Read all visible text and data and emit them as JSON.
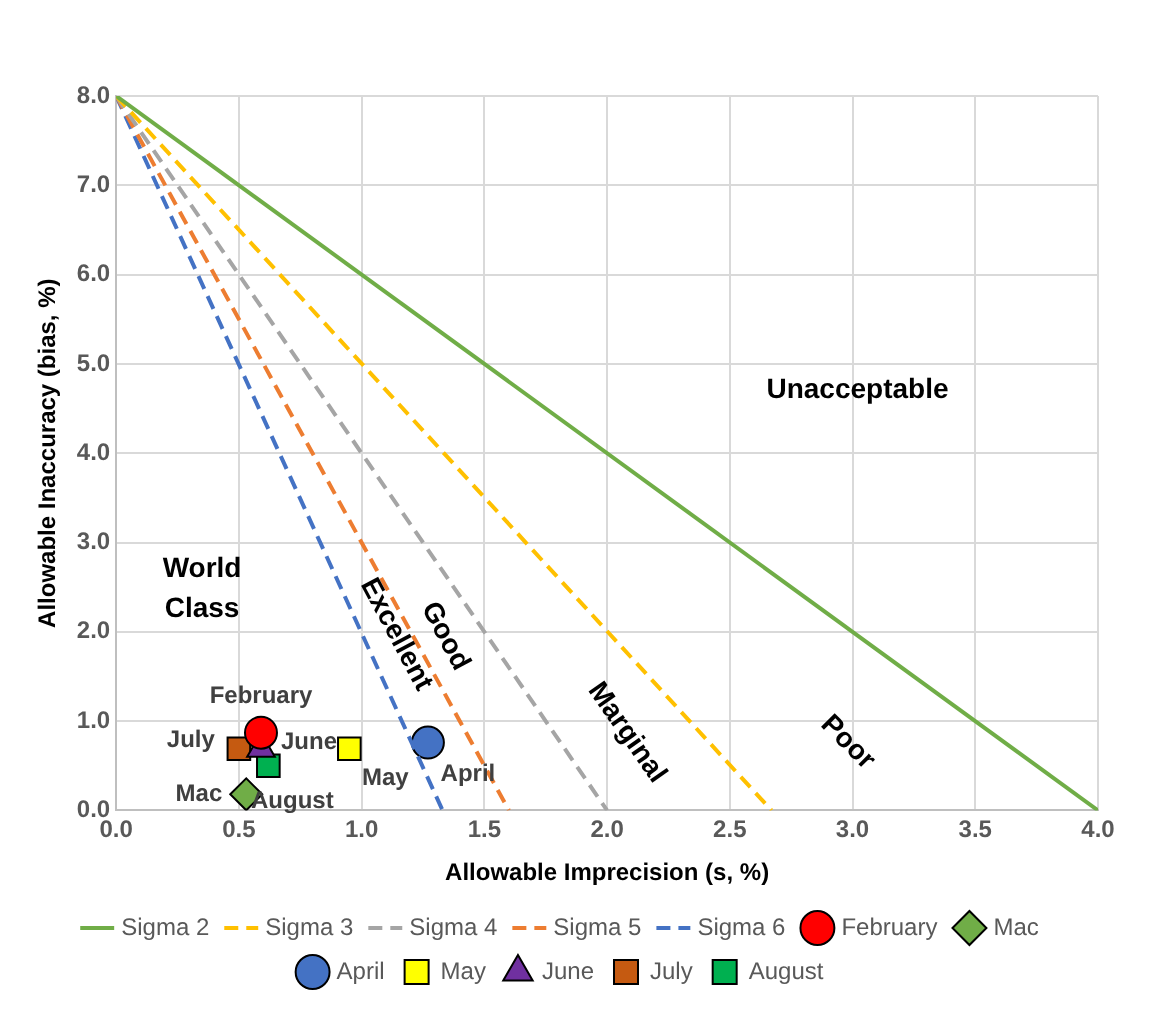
{
  "chart_data": {
    "type": "line",
    "xlabel": "Allowable Imprecision (s, %)",
    "ylabel": "Allowable Inaccuracy (bias, %)",
    "xlim": [
      0,
      4
    ],
    "ylim": [
      0,
      8
    ],
    "xticks": [
      {
        "value": 0,
        "label": "0.0"
      },
      {
        "value": 0.5,
        "label": "0.5"
      },
      {
        "value": 1,
        "label": "1.0"
      },
      {
        "value": 1.5,
        "label": "1.5"
      },
      {
        "value": 2,
        "label": "2.0"
      },
      {
        "value": 2.5,
        "label": "2.5"
      },
      {
        "value": 3,
        "label": "3.0"
      },
      {
        "value": 3.5,
        "label": "3.5"
      },
      {
        "value": 4,
        "label": "4.0"
      }
    ],
    "yticks": [
      {
        "value": 0,
        "label": "0.0"
      },
      {
        "value": 1,
        "label": "1.0"
      },
      {
        "value": 2,
        "label": "2.0"
      },
      {
        "value": 3,
        "label": "3.0"
      },
      {
        "value": 4,
        "label": "4.0"
      },
      {
        "value": 5,
        "label": "5.0"
      },
      {
        "value": 6,
        "label": "6.0"
      },
      {
        "value": 7,
        "label": "7.0"
      },
      {
        "value": 8,
        "label": "8.0"
      }
    ],
    "grid": true,
    "legend": "bottom",
    "series": [
      {
        "name": "Sigma 2",
        "color": "#70ad47",
        "line_style": "solid",
        "x": [
          0,
          4
        ],
        "values": [
          8,
          0
        ]
      },
      {
        "name": "Sigma 3",
        "color": "#ffc000",
        "line_style": "dashed",
        "x": [
          0,
          2.67
        ],
        "values": [
          8,
          0
        ]
      },
      {
        "name": "Sigma 4",
        "color": "#a5a5a5",
        "line_style": "dashed",
        "x": [
          0,
          2
        ],
        "values": [
          8,
          0
        ]
      },
      {
        "name": "Sigma 5",
        "color": "#ed7d31",
        "line_style": "dashed",
        "x": [
          0,
          1.6
        ],
        "values": [
          8,
          0
        ]
      },
      {
        "name": "Sigma 6",
        "color": "#4472c4",
        "line_style": "dashed",
        "x": [
          0,
          1.33
        ],
        "values": [
          8,
          0
        ]
      },
      {
        "name": "February",
        "type": "scatter",
        "color": "#ff0000",
        "marker": "circle",
        "x": [
          0.59
        ],
        "values": [
          0.87
        ]
      },
      {
        "name": "Mac",
        "type": "scatter",
        "color": "#70ad47",
        "marker": "diamond",
        "x": [
          0.53
        ],
        "values": [
          0.18
        ]
      },
      {
        "name": "April",
        "type": "scatter",
        "color": "#4472c4",
        "marker": "circle",
        "x": [
          1.27
        ],
        "values": [
          0.76
        ]
      },
      {
        "name": "May",
        "type": "scatter",
        "color": "#ffff00",
        "marker": "square",
        "x": [
          0.95
        ],
        "values": [
          0.69
        ]
      },
      {
        "name": "June",
        "type": "scatter",
        "color": "#7030a0",
        "marker": "triangle",
        "x": [
          0.59
        ],
        "values": [
          0.69
        ]
      },
      {
        "name": "July",
        "type": "scatter",
        "color": "#c55a11",
        "marker": "square",
        "x": [
          0.5
        ],
        "values": [
          0.69
        ]
      },
      {
        "name": "August",
        "type": "scatter",
        "color": "#00b050",
        "marker": "square",
        "x": [
          0.62
        ],
        "values": [
          0.5
        ]
      }
    ],
    "annotations": [
      "Unacceptable",
      "World\nClass",
      "Excellent",
      "Good",
      "Marginal",
      "Poor"
    ]
  }
}
